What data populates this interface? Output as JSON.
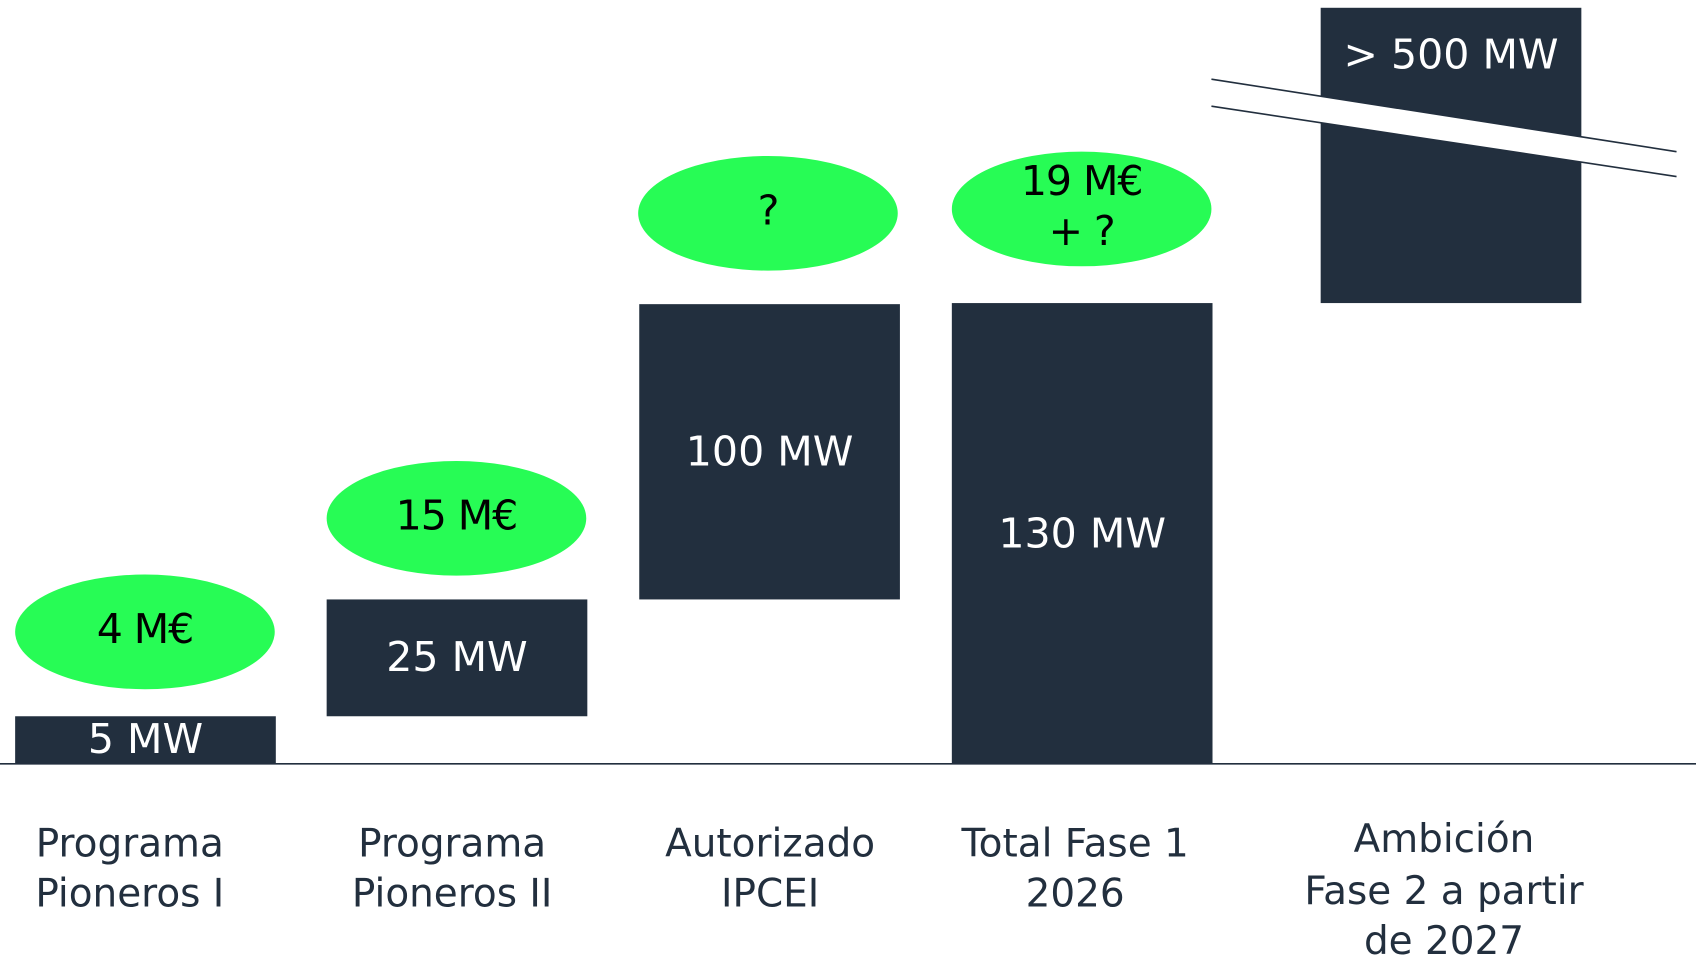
{
  "bars": [
    {
      "label": "5 MW",
      "funding": [
        "4 M€"
      ],
      "category": [
        "Programa",
        "Pioneros I"
      ]
    },
    {
      "label": "25 MW",
      "funding": [
        "15 M€"
      ],
      "category": [
        "Programa",
        "Pioneros II"
      ]
    },
    {
      "label": "100 MW",
      "funding": [
        "?"
      ],
      "category": [
        "Autorizado",
        "IPCEI"
      ]
    },
    {
      "label": "130 MW",
      "funding": [
        "19 M€",
        "+ ?"
      ],
      "category": [
        "Total Fase 1",
        "2026"
      ]
    },
    {
      "label": "> 500 MW",
      "funding": [],
      "category": [
        "Ambición",
        "Fase 2 a partir",
        "de 2027"
      ]
    }
  ]
}
